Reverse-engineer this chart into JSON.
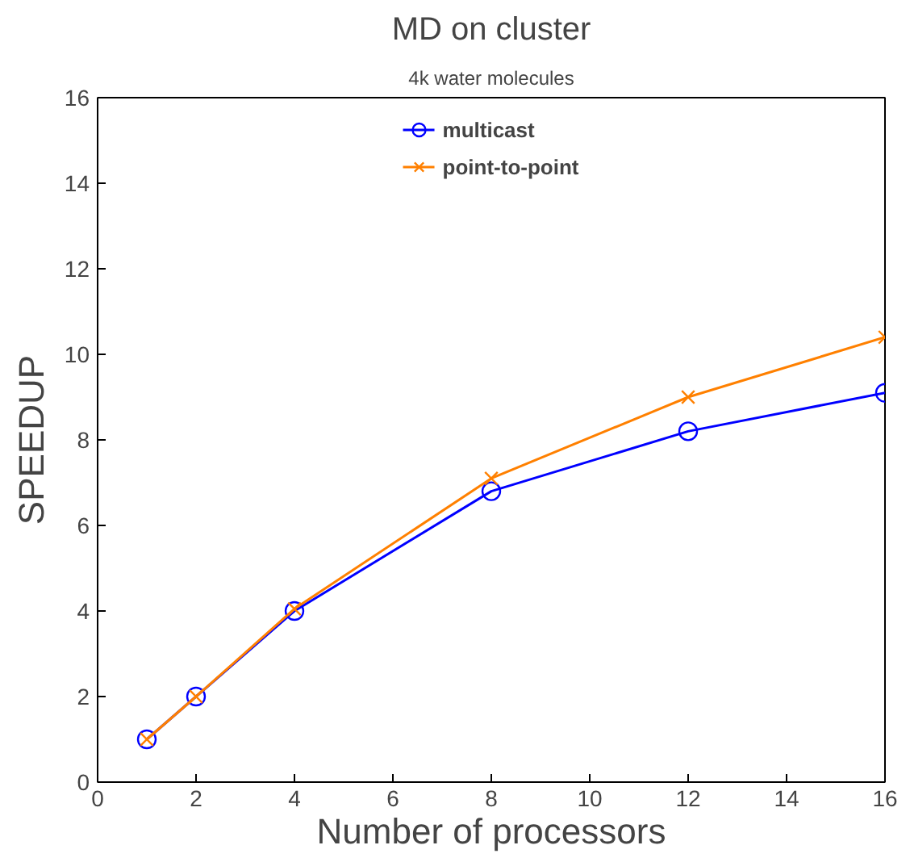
{
  "chart_data": {
    "type": "line",
    "title": "MD on cluster",
    "subtitle": "4k water molecules",
    "xlabel": "Number of processors",
    "ylabel": "SPEEDUP",
    "x": [
      1,
      2,
      4,
      8,
      12,
      16
    ],
    "series": [
      {
        "name": "multicast",
        "color": "#0000ff",
        "marker": "circle",
        "values": [
          1,
          2,
          4,
          6.8,
          8.2,
          9.1
        ]
      },
      {
        "name": "point-to-point",
        "color": "#ff8000",
        "marker": "cross",
        "values": [
          1,
          2,
          4.05,
          7.1,
          9.0,
          10.4
        ]
      }
    ],
    "xlim": [
      0,
      16
    ],
    "ylim": [
      0,
      16
    ],
    "xticks": [
      0,
      2,
      4,
      6,
      8,
      10,
      12,
      14,
      16
    ],
    "yticks": [
      0,
      2,
      4,
      6,
      8,
      10,
      12,
      14,
      16
    ],
    "grid": false,
    "legend": "top",
    "line_style": "solid"
  }
}
